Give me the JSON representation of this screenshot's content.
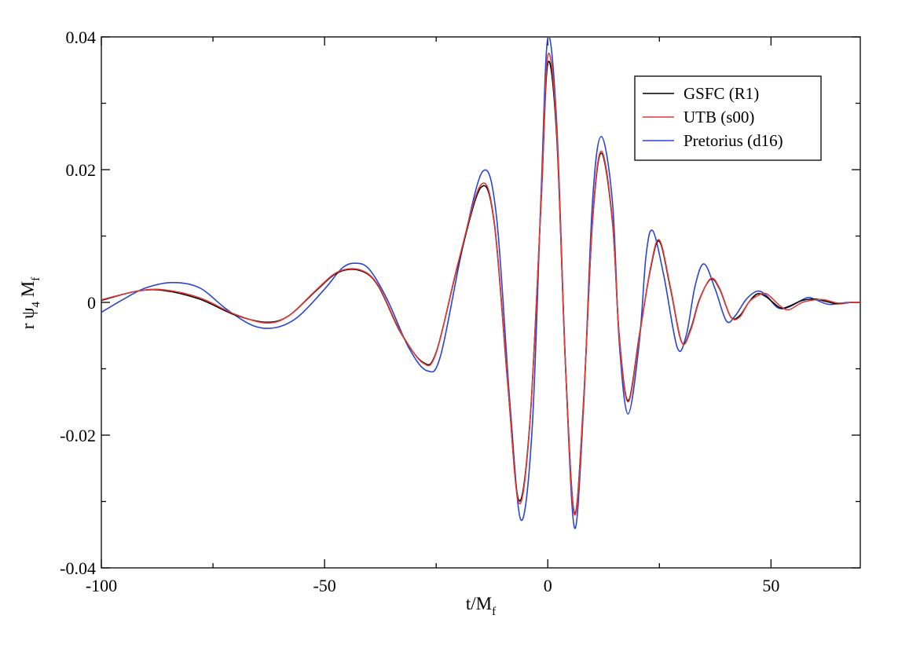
{
  "chart_data": {
    "type": "line",
    "title": "",
    "xlabel": {
      "main": "t/M",
      "sub": "f"
    },
    "ylabel": {
      "main": "r ψ",
      "sub1": "4",
      "mid": " M",
      "sub2": "f"
    },
    "xlim": [
      -100,
      70
    ],
    "ylim": [
      -0.04,
      0.04
    ],
    "x_ticks": [
      -100,
      -50,
      0,
      50
    ],
    "x_tick_labels": [
      "-100",
      "-50",
      "0",
      "50"
    ],
    "y_ticks": [
      -0.04,
      -0.02,
      0,
      0.02,
      0.04
    ],
    "y_tick_labels": [
      "-0.04",
      "-0.02",
      "0",
      "0.02",
      "0.04"
    ],
    "grid": false,
    "legend_position": "top-right",
    "series": [
      {
        "name": "GSFC (R1)",
        "color": "#000000",
        "points": [
          [
            -100,
            0.0003
          ],
          [
            -92,
            0.0017
          ],
          [
            -86,
            0.0018
          ],
          [
            -78,
            0.0005
          ],
          [
            -70,
            -0.0019
          ],
          [
            -63,
            -0.003
          ],
          [
            -58,
            -0.002
          ],
          [
            -52,
            0.0017
          ],
          [
            -47,
            0.0045
          ],
          [
            -42,
            0.0048
          ],
          [
            -38,
            0.0025
          ],
          [
            -33,
            -0.0045
          ],
          [
            -28,
            -0.009
          ],
          [
            -25,
            -0.0075
          ],
          [
            -20,
            0.006
          ],
          [
            -15,
            0.0173
          ],
          [
            -12,
            0.012
          ],
          [
            -9,
            -0.012
          ],
          [
            -6.5,
            -0.0298
          ],
          [
            -4,
            -0.018
          ],
          [
            -1.5,
            0.015
          ],
          [
            0,
            0.036
          ],
          [
            2,
            0.025
          ],
          [
            4,
            -0.01
          ],
          [
            6,
            -0.0318
          ],
          [
            8,
            -0.015
          ],
          [
            10,
            0.012
          ],
          [
            12,
            0.0225
          ],
          [
            14.5,
            0.012
          ],
          [
            16,
            -0.005
          ],
          [
            18,
            -0.0148
          ],
          [
            20.5,
            -0.005
          ],
          [
            23,
            0.005
          ],
          [
            25,
            0.0092
          ],
          [
            27.5,
            0.002
          ],
          [
            30,
            -0.006
          ],
          [
            32,
            -0.004
          ],
          [
            34,
            0.0005
          ],
          [
            36.5,
            0.0035
          ],
          [
            38.5,
            0.002
          ],
          [
            41,
            -0.0022
          ],
          [
            43,
            -0.002
          ],
          [
            45,
            0
          ],
          [
            47,
            0.0013
          ],
          [
            49,
            0.0008
          ],
          [
            52,
            -0.0008
          ],
          [
            54,
            -0.0006
          ],
          [
            57,
            0.0003
          ],
          [
            60,
            0.0005
          ],
          [
            62,
            0.0002
          ],
          [
            65,
            -0.0002
          ],
          [
            68,
            0
          ],
          [
            70,
            0
          ]
        ]
      },
      {
        "name": "UTB (s00)",
        "color": "#e23b3b",
        "points": [
          [
            -100,
            0.0004
          ],
          [
            -92,
            0.0017
          ],
          [
            -86,
            0.0019
          ],
          [
            -78,
            0.0007
          ],
          [
            -70,
            -0.0018
          ],
          [
            -63,
            -0.0031
          ],
          [
            -58,
            -0.002
          ],
          [
            -52,
            0.0018
          ],
          [
            -47,
            0.0046
          ],
          [
            -42,
            0.0049
          ],
          [
            -38,
            0.0026
          ],
          [
            -33,
            -0.0044
          ],
          [
            -28,
            -0.0091
          ],
          [
            -25,
            -0.0076
          ],
          [
            -20,
            0.0062
          ],
          [
            -15,
            0.0177
          ],
          [
            -12,
            0.0122
          ],
          [
            -9,
            -0.0118
          ],
          [
            -6.5,
            -0.0302
          ],
          [
            -4,
            -0.0182
          ],
          [
            -1.5,
            0.0152
          ],
          [
            0,
            0.0372
          ],
          [
            2,
            0.0258
          ],
          [
            4,
            -0.0102
          ],
          [
            6,
            -0.032
          ],
          [
            8,
            -0.0152
          ],
          [
            10,
            0.0122
          ],
          [
            12,
            0.0228
          ],
          [
            14.5,
            0.0122
          ],
          [
            16,
            -0.0052
          ],
          [
            18,
            -0.015
          ],
          [
            20.5,
            -0.0052
          ],
          [
            23,
            0.0052
          ],
          [
            25,
            0.0094
          ],
          [
            27.5,
            0.0022
          ],
          [
            30,
            -0.006
          ],
          [
            32,
            -0.0042
          ],
          [
            34,
            0.0004
          ],
          [
            36.5,
            0.0036
          ],
          [
            38.5,
            0.0021
          ],
          [
            41,
            -0.0022
          ],
          [
            43,
            -0.0022
          ],
          [
            45,
            0
          ],
          [
            47,
            0.001
          ],
          [
            49,
            0.0013
          ],
          [
            52,
            -0.0005
          ],
          [
            54,
            -0.0011
          ],
          [
            57,
            0
          ],
          [
            60,
            0.0004
          ],
          [
            62,
            0.0004
          ],
          [
            65,
            -0.0001
          ],
          [
            68,
            0
          ],
          [
            70,
            0
          ]
        ]
      },
      {
        "name": "Pretorius (d16)",
        "color": "#2c44d6",
        "points": [
          [
            -100,
            -0.0015
          ],
          [
            -95,
            0.0005
          ],
          [
            -90,
            0.0022
          ],
          [
            -84,
            0.003
          ],
          [
            -78,
            0.0022
          ],
          [
            -72,
            -0.001
          ],
          [
            -66,
            -0.0035
          ],
          [
            -61,
            -0.0038
          ],
          [
            -56,
            -0.0022
          ],
          [
            -50,
            0.002
          ],
          [
            -46,
            0.0052
          ],
          [
            -43,
            0.0059
          ],
          [
            -40,
            0.005
          ],
          [
            -36,
            0.0005
          ],
          [
            -31,
            -0.007
          ],
          [
            -27,
            -0.0103
          ],
          [
            -24,
            -0.008
          ],
          [
            -19,
            0.0085
          ],
          [
            -14.5,
            0.0198
          ],
          [
            -11.5,
            0.013
          ],
          [
            -8.5,
            -0.015
          ],
          [
            -6,
            -0.0328
          ],
          [
            -3.5,
            -0.019
          ],
          [
            -1.5,
            0.0165
          ],
          [
            0,
            0.0398
          ],
          [
            2,
            0.027
          ],
          [
            4,
            -0.01
          ],
          [
            6,
            -0.034
          ],
          [
            8,
            -0.016
          ],
          [
            10,
            0.015
          ],
          [
            12,
            0.025
          ],
          [
            14.5,
            0.015
          ],
          [
            16,
            -0.006
          ],
          [
            18,
            -0.0168
          ],
          [
            20.5,
            -0.006
          ],
          [
            22,
            0.007
          ],
          [
            23.5,
            0.0108
          ],
          [
            26,
            0.004
          ],
          [
            29,
            -0.0068
          ],
          [
            31,
            -0.005
          ],
          [
            33,
            0.0025
          ],
          [
            35,
            0.0058
          ],
          [
            37.5,
            0.002
          ],
          [
            40,
            -0.0028
          ],
          [
            42,
            -0.002
          ],
          [
            44.5,
            0.0005
          ],
          [
            47,
            0.0017
          ],
          [
            49,
            0.001
          ],
          [
            51.5,
            -0.0008
          ],
          [
            54,
            -0.0007
          ],
          [
            58,
            0.0007
          ],
          [
            60,
            0.0004
          ],
          [
            63,
            -0.0003
          ],
          [
            67,
            0
          ],
          [
            70,
            0
          ]
        ]
      }
    ]
  }
}
